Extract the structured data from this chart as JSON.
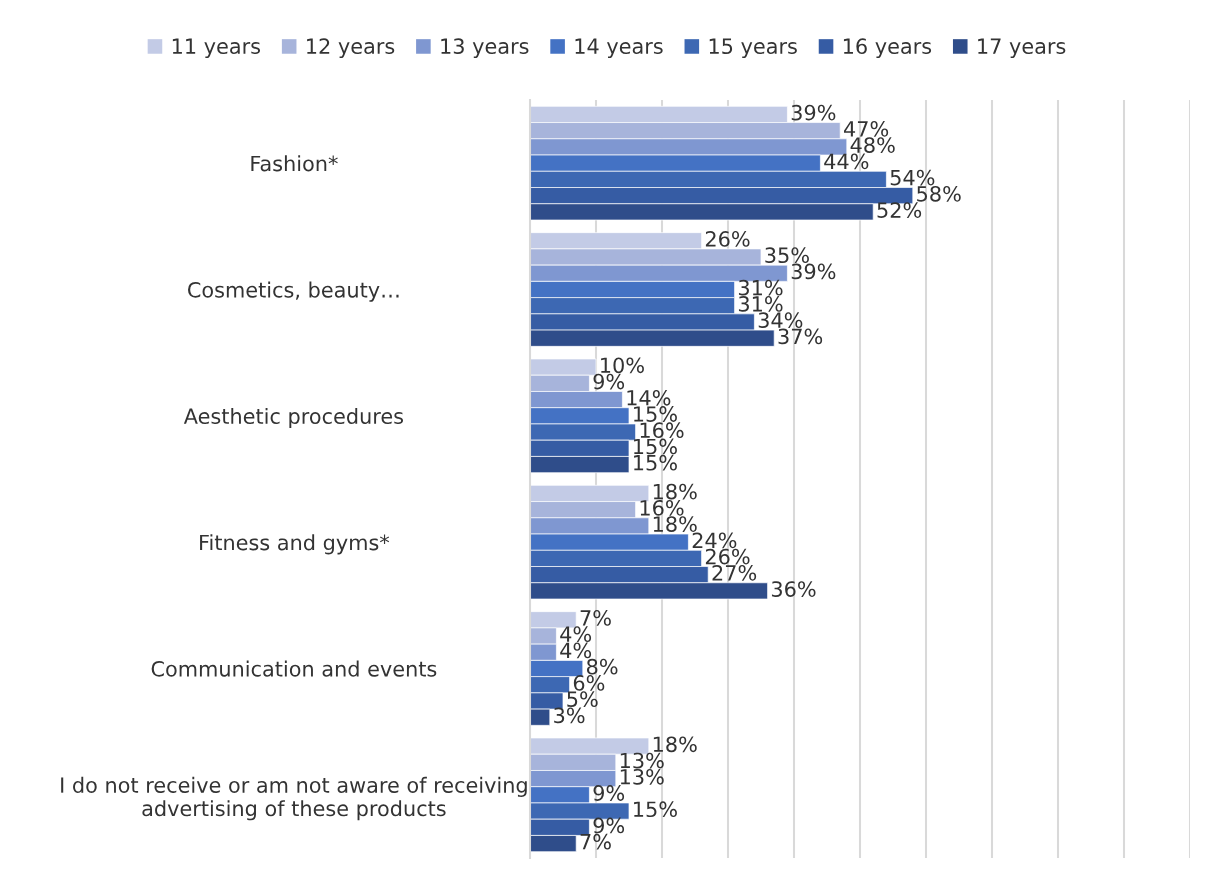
{
  "chart_data": {
    "type": "bar",
    "orientation": "horizontal",
    "categories": [
      "Fashion*",
      "Cosmetics, beauty…",
      "Aesthetic procedures",
      "Fitness and gyms*",
      "Communication and events",
      "I do not receive or am not aware of receiving\nadvertising of these products"
    ],
    "series": [
      {
        "name": "11 years",
        "color": "#c3cbe6",
        "values": [
          39,
          26,
          10,
          18,
          7,
          18
        ],
        "value_labels": [
          "39%",
          "26%",
          "10%",
          "18%",
          "7%",
          "18%"
        ]
      },
      {
        "name": "12 years",
        "color": "#a7b4db",
        "values": [
          47,
          35,
          9,
          16,
          4,
          13
        ],
        "value_labels": [
          "47%",
          "35%",
          "9%",
          "16%",
          "4%",
          "13%"
        ]
      },
      {
        "name": "13 years",
        "color": "#7f97d1",
        "values": [
          48,
          39,
          14,
          18,
          4,
          13
        ],
        "value_labels": [
          "48%",
          "39%",
          "14%",
          "18%",
          "4%",
          "13%"
        ]
      },
      {
        "name": "14 years",
        "color": "#4472c4",
        "values": [
          44,
          31,
          15,
          24,
          8,
          9
        ],
        "value_labels": [
          "44%",
          "31%",
          "15%",
          "24%",
          "8%",
          "9%"
        ]
      },
      {
        "name": "15 years",
        "color": "#3d68b3",
        "values": [
          54,
          31,
          16,
          26,
          6,
          15
        ],
        "value_labels": [
          "54%",
          "31%",
          "16%",
          "26%",
          "6%",
          "15%"
        ]
      },
      {
        "name": "16 years",
        "color": "#365ca4",
        "values": [
          58,
          34,
          15,
          27,
          5,
          9
        ],
        "value_labels": [
          "58%",
          "34%",
          "15%",
          "27%",
          "5%",
          "9%"
        ]
      },
      {
        "name": "17 years",
        "color": "#2f4d8a",
        "values": [
          52,
          37,
          15,
          36,
          3,
          7
        ],
        "value_labels": [
          "52%",
          "37%",
          "15%",
          "36%",
          "3%",
          "7%"
        ]
      }
    ],
    "xlim": [
      0,
      100
    ],
    "xticks": [
      {
        "value": 0,
        "label": null
      },
      {
        "value": 10,
        "label": null
      },
      {
        "value": 20,
        "label": null
      },
      {
        "value": 30,
        "label": null
      },
      {
        "value": 40,
        "label": null
      },
      {
        "value": 50,
        "label": null
      },
      {
        "value": 60,
        "label": null
      },
      {
        "value": 70,
        "label": null
      },
      {
        "value": 80,
        "label": null
      },
      {
        "value": 90,
        "label": null
      },
      {
        "value": 100,
        "label": null
      }
    ],
    "tick_labels": "y",
    "grid": "x",
    "legend": "top"
  }
}
